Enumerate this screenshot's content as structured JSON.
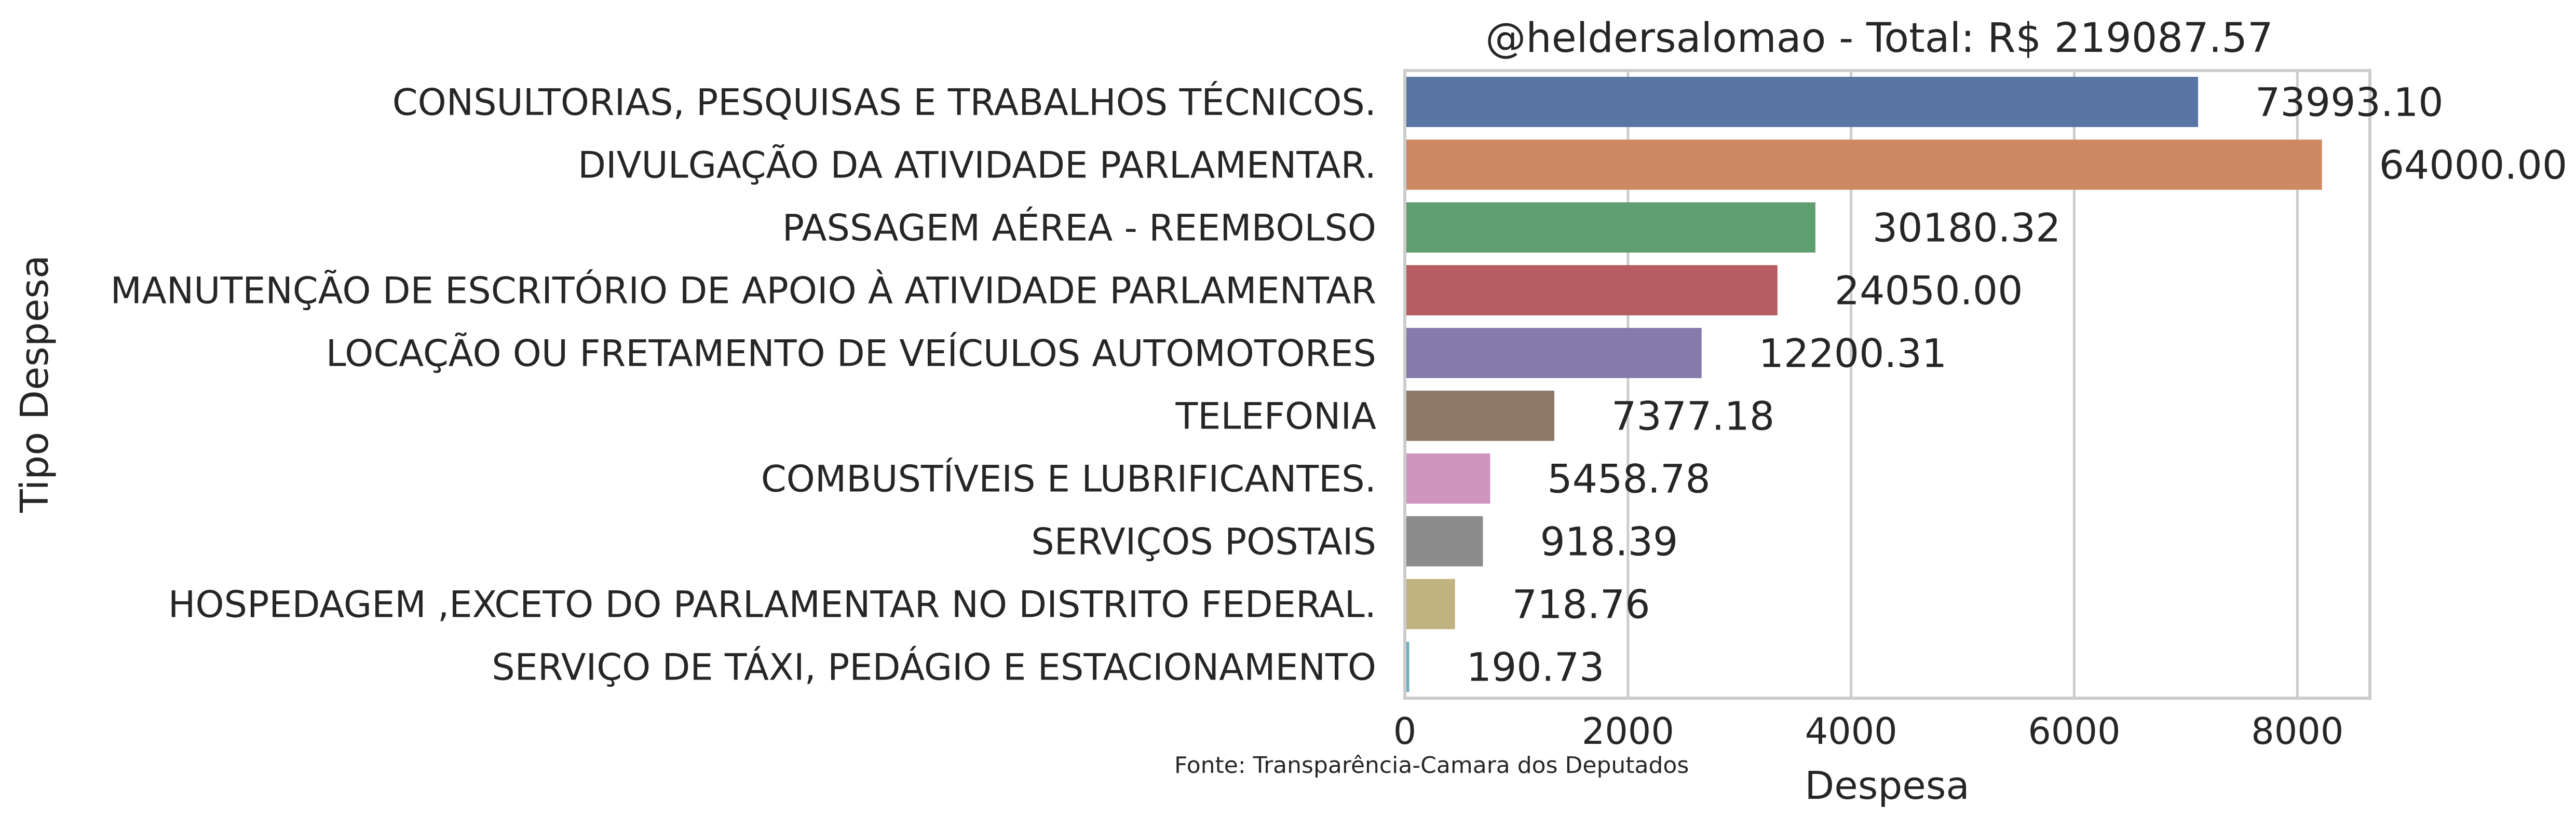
{
  "chart_data": {
    "type": "bar",
    "orientation": "horizontal",
    "title": "@heldersalomao - Total: R$ 219087.57",
    "xlabel": "Despesa",
    "ylabel": "Tipo Despesa",
    "source_note": "Fonte: Transparência-Camara dos Deputados",
    "xlim": [
      0,
      8650
    ],
    "x_ticks": [
      0,
      2000,
      4000,
      6000,
      8000
    ],
    "grid": "vertical",
    "categories": [
      "CONSULTORIAS, PESQUISAS E TRABALHOS TÉCNICOS.",
      "DIVULGAÇÃO DA ATIVIDADE PARLAMENTAR.",
      "PASSAGEM AÉREA - REEMBOLSO",
      "MANUTENÇÃO DE ESCRITÓRIO DE APOIO À ATIVIDADE PARLAMENTAR",
      "LOCAÇÃO OU FRETAMENTO DE VEÍCULOS AUTOMOTORES",
      "TELEFONIA",
      "COMBUSTÍVEIS E LUBRIFICANTES.",
      "SERVIÇOS POSTAIS",
      "HOSPEDAGEM ,EXCETO DO PARLAMENTAR NO DISTRITO FEDERAL.",
      "SERVIÇO DE TÁXI, PEDÁGIO E ESTACIONAMENTO"
    ],
    "values": [
      7110,
      8220,
      3680,
      3340,
      2660,
      1340,
      765,
      700,
      450,
      40
    ],
    "data_labels": [
      "73993.10",
      "64000.00",
      "30180.32",
      "24050.00",
      "12200.31",
      "7377.18",
      "5458.78",
      "918.39",
      "718.76",
      "190.73"
    ],
    "colors": [
      "#5875a4",
      "#cc8963",
      "#5f9e6e",
      "#b55d60",
      "#857aab",
      "#8d7866",
      "#d095bf",
      "#8c8c8c",
      "#c1b37f",
      "#71aec0"
    ]
  }
}
